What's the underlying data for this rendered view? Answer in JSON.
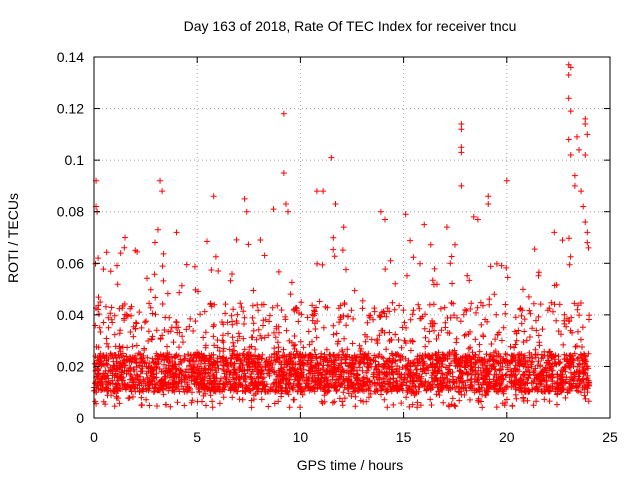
{
  "chart_data": {
    "type": "scatter",
    "title": "Day 163 of 2018, Rate Of TEC Index for receiver tncu",
    "xlabel": "GPS time / hours",
    "ylabel": "ROTI / TECUs",
    "xlim": [
      0,
      25
    ],
    "ylim": [
      0,
      0.14
    ],
    "xticks": [
      0,
      5,
      10,
      15,
      20,
      25
    ],
    "xtick_labels": [
      "0",
      "5",
      "10",
      "15",
      "20",
      "25"
    ],
    "yticks": [
      0,
      0.02,
      0.04,
      0.06,
      0.08,
      0.1,
      0.12,
      0.14
    ],
    "ytick_labels": [
      "0",
      "0.02",
      "0.04",
      "0.06",
      "0.08",
      "0.1",
      "0.12",
      "0.14"
    ],
    "grid": true,
    "marker": "+",
    "marker_color": "#ff0000",
    "series": [
      {
        "name": "ROTI",
        "points": [
          [
            0.1,
            0.092
          ],
          [
            0.1,
            0.082
          ],
          [
            0.15,
            0.08
          ],
          [
            0.2,
            0.062
          ],
          [
            0.3,
            0.045
          ],
          [
            2.0,
            0.065
          ],
          [
            3.2,
            0.092
          ],
          [
            3.3,
            0.088
          ],
          [
            3.1,
            0.073
          ],
          [
            4.0,
            0.072
          ],
          [
            5.8,
            0.086
          ],
          [
            7.3,
            0.085
          ],
          [
            7.4,
            0.08
          ],
          [
            8.7,
            0.081
          ],
          [
            9.2,
            0.118
          ],
          [
            9.2,
            0.095
          ],
          [
            9.3,
            0.083
          ],
          [
            9.4,
            0.08
          ],
          [
            10.8,
            0.088
          ],
          [
            11.1,
            0.088
          ],
          [
            11.5,
            0.101
          ],
          [
            11.7,
            0.083
          ],
          [
            12.1,
            0.074
          ],
          [
            13.9,
            0.08
          ],
          [
            14.1,
            0.077
          ],
          [
            15.1,
            0.079
          ],
          [
            16.0,
            0.075
          ],
          [
            17.1,
            0.074
          ],
          [
            17.8,
            0.114
          ],
          [
            17.8,
            0.112
          ],
          [
            17.8,
            0.105
          ],
          [
            17.8,
            0.103
          ],
          [
            17.8,
            0.09
          ],
          [
            18.4,
            0.078
          ],
          [
            18.6,
            0.077
          ],
          [
            19.1,
            0.086
          ],
          [
            19.1,
            0.083
          ],
          [
            20.0,
            0.092
          ],
          [
            22.3,
            0.072
          ],
          [
            22.7,
            0.069
          ],
          [
            23.0,
            0.137
          ],
          [
            23.1,
            0.136
          ],
          [
            23.0,
            0.133
          ],
          [
            23.0,
            0.124
          ],
          [
            23.1,
            0.119
          ],
          [
            23.0,
            0.108
          ],
          [
            23.1,
            0.102
          ],
          [
            23.4,
            0.109
          ],
          [
            23.5,
            0.104
          ],
          [
            23.3,
            0.094
          ],
          [
            23.3,
            0.09
          ],
          [
            23.8,
            0.116
          ],
          [
            23.8,
            0.114
          ],
          [
            23.9,
            0.11
          ],
          [
            23.8,
            0.102
          ],
          [
            23.6,
            0.088
          ],
          [
            23.7,
            0.082
          ],
          [
            23.8,
            0.076
          ],
          [
            23.9,
            0.072
          ],
          [
            23.9,
            0.068
          ]
        ]
      }
    ],
    "background_band": {
      "description": "dense cloud of ROTI samples across the day",
      "baseline_min": 0.004,
      "typical_low": 0.01,
      "typical_high": 0.045,
      "occasional_high": 0.07
    }
  }
}
